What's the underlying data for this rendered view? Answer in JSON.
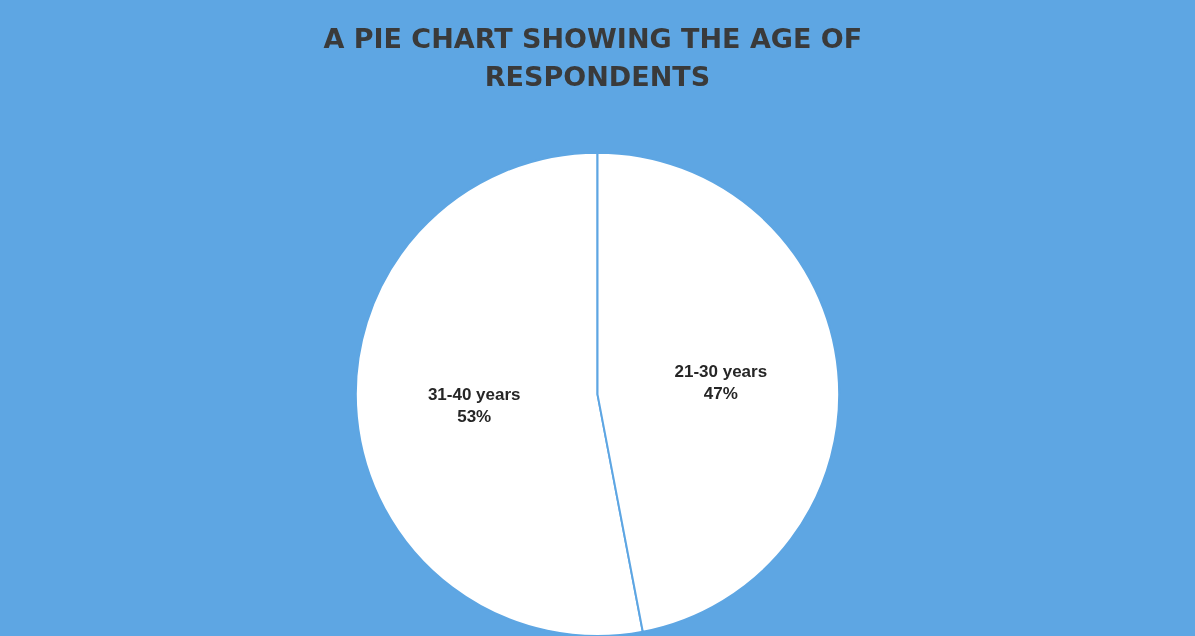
{
  "chart_data": {
    "type": "pie",
    "title": "A PIE CHART SHOWING THE AGE OF RESPONDENTS",
    "categories": [
      "31-40 years",
      "21-30 years"
    ],
    "values": [
      53,
      47
    ],
    "value_labels": [
      "53%",
      "47%"
    ],
    "colors": [
      "#ffffff",
      "#ffffff"
    ],
    "data_labels": true
  }
}
